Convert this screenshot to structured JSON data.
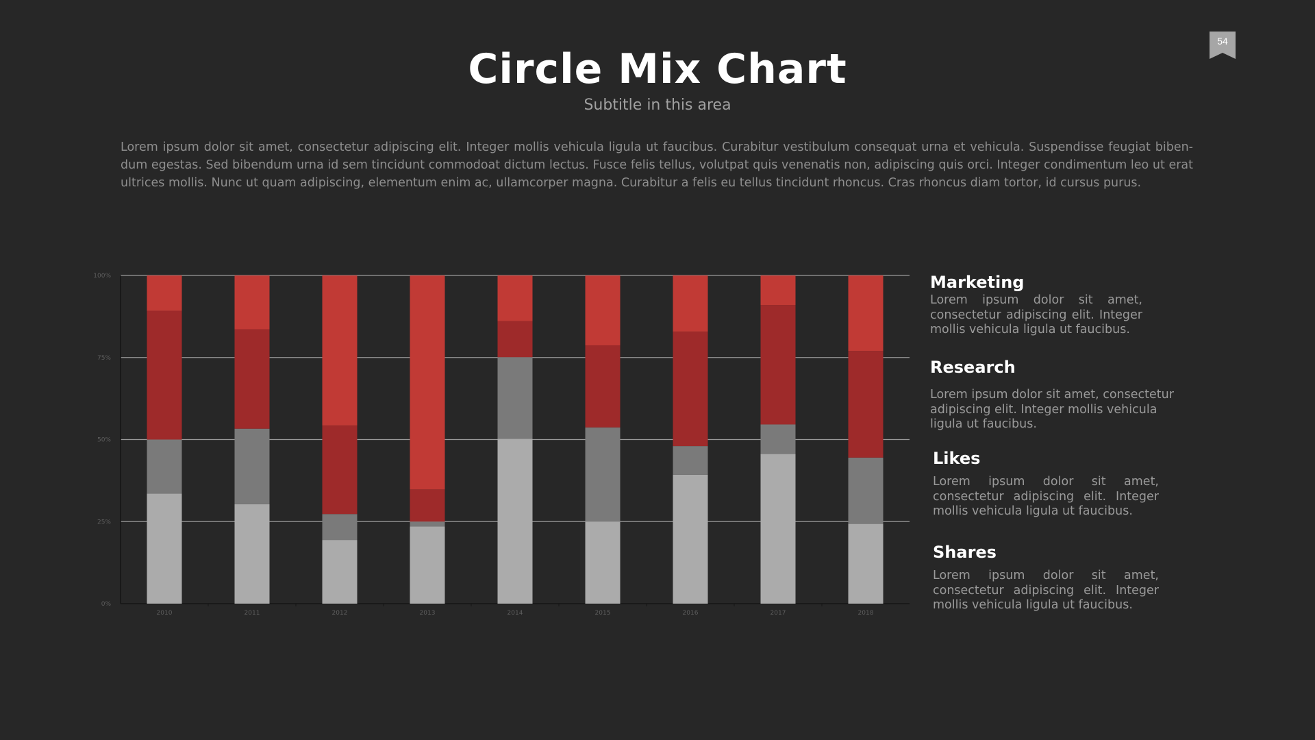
{
  "page_number": "54",
  "title": "Circle Mix Chart",
  "subtitle": "Subtitle in this area",
  "intro": "Lorem ipsum dolor sit amet, consectetur adipiscing elit. Integer mollis vehicula ligula ut faucibus. Curabitur vestibulum consequat urna et vehicula. Suspendisse feugiat biben- dum egestas. Sed bibendum urna id sem tincidunt commodoat dictum lectus. Fusce felis tellus, volutpat quis venenatis non, adipiscing quis orci. Integer condimentum leo ut erat ultrices mollis. Nunc ut quam adipiscing, elementum enim ac, ullamcorper magna. Curabitur a felis eu tellus tincidunt rhoncus. Cras rhoncus diam tortor, id cursus purus.",
  "sections": [
    {
      "title": "Marketing",
      "text": "Lorem ipsum dolor sit amet, consectetur adipiscing elit. Integer mollis vehicula ligula ut faucibus."
    },
    {
      "title": "Research",
      "text": "Lorem ipsum dolor sit amet, consectetur adipiscing elit. Integer mollis vehicula ligula ut faucibus."
    },
    {
      "title": "Likes",
      "text": "Lorem ipsum dolor sit amet, consectetur adipiscing elit. Integer mollis vehicula ligula ut faucibus."
    },
    {
      "title": "Shares",
      "text": "Lorem ipsum dolor sit amet, consectetur adipiscing elit. Integer mollis vehicula ligula ut faucibus."
    }
  ],
  "colors": {
    "background": "#272727",
    "series": [
      "#ababab",
      "#7a7a7a",
      "#9e2a2a",
      "#c13a35"
    ],
    "grid": "#9a9a9a"
  },
  "chart_data": {
    "type": "bar",
    "stacked": true,
    "categories": [
      "2010",
      "2011",
      "2012",
      "2013",
      "2014",
      "2015",
      "2016",
      "2017",
      "2018"
    ],
    "series": [
      {
        "values": [
          33.5,
          30.3,
          19.4,
          23.5,
          50.2,
          25.0,
          39.3,
          45.6,
          24.3
        ]
      },
      {
        "values": [
          16.5,
          23.0,
          7.9,
          1.5,
          24.9,
          28.7,
          8.7,
          9.0,
          20.2
        ]
      },
      {
        "values": [
          39.2,
          30.3,
          27.0,
          9.8,
          11.0,
          25.0,
          34.9,
          36.4,
          32.5
        ]
      },
      {
        "values": [
          10.8,
          16.4,
          45.7,
          65.2,
          13.9,
          21.3,
          17.1,
          9.0,
          23.0
        ]
      }
    ],
    "y_ticks": [
      "0%",
      "25%",
      "50%",
      "75%",
      "100%"
    ],
    "ylim": [
      0,
      100
    ],
    "grid": true,
    "legend": "none"
  }
}
